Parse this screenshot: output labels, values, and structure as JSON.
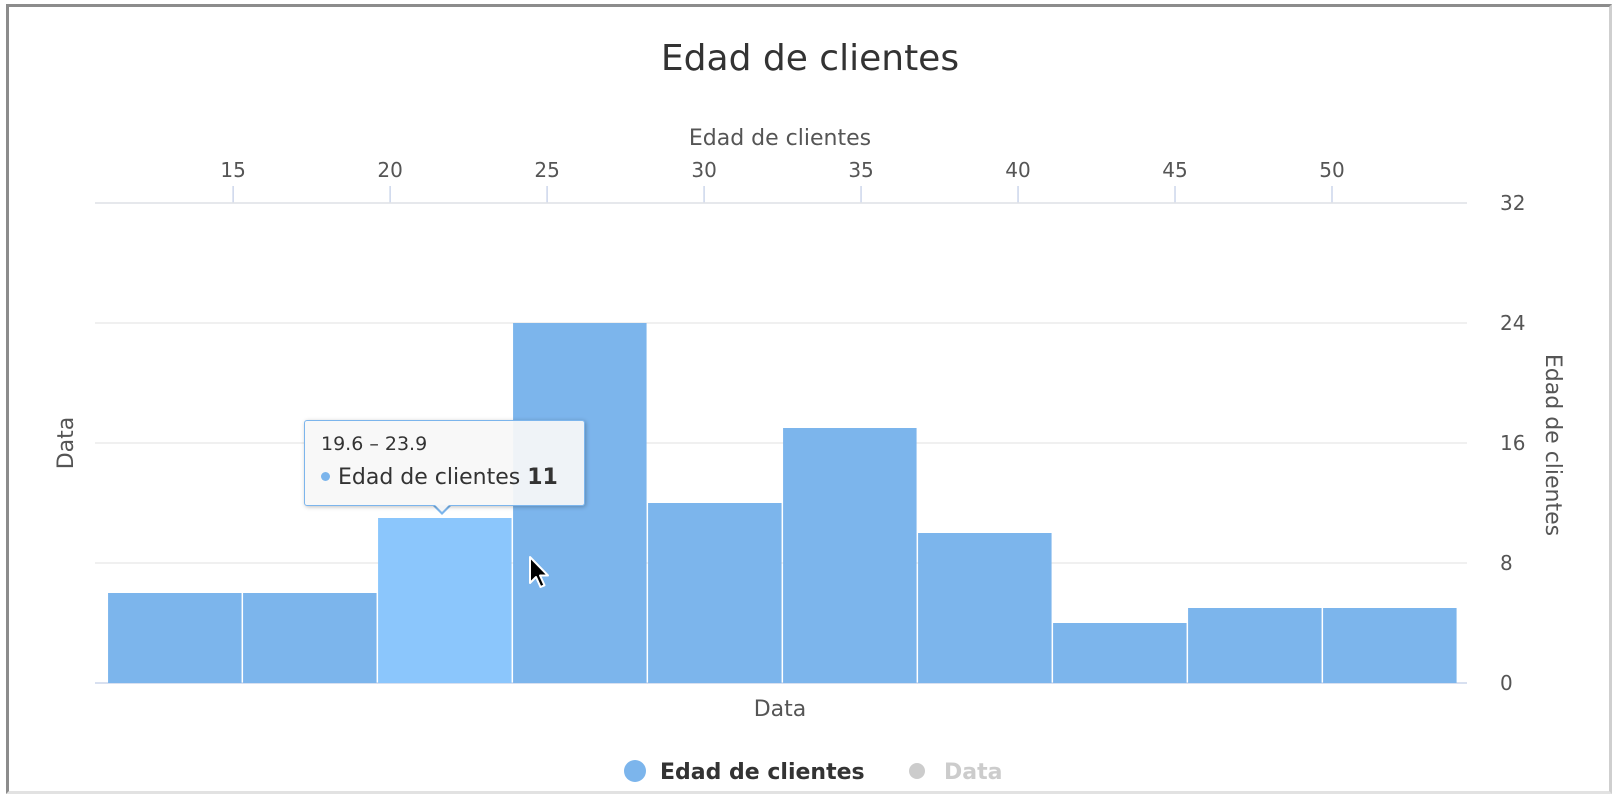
{
  "chart_data": {
    "type": "bar",
    "title": "Edad de clientes",
    "x_axis_top": {
      "title": "Edad de clientes",
      "ticks": [
        15,
        20,
        25,
        30,
        35,
        40,
        45,
        50
      ],
      "range": [
        10.6,
        54.3
      ]
    },
    "x_axis_bottom": {
      "title": "Data"
    },
    "y_axis_left": {
      "title": "Data"
    },
    "y_axis_right": {
      "title": "Edad de clientes",
      "ticks": [
        0,
        8,
        16,
        24,
        32
      ],
      "ylim": [
        0,
        32
      ]
    },
    "series": [
      {
        "name": "Edad de clientes",
        "color": "#7cb5ec",
        "bins": [
          {
            "from": 11.0,
            "to": 15.3,
            "value": 6
          },
          {
            "from": 15.3,
            "to": 19.6,
            "value": 6
          },
          {
            "from": 19.6,
            "to": 23.9,
            "value": 11,
            "highlighted": true
          },
          {
            "from": 23.9,
            "to": 28.2,
            "value": 24
          },
          {
            "from": 28.2,
            "to": 32.5,
            "value": 12
          },
          {
            "from": 32.5,
            "to": 36.8,
            "value": 17
          },
          {
            "from": 36.8,
            "to": 41.1,
            "value": 10
          },
          {
            "from": 41.1,
            "to": 45.4,
            "value": 4
          },
          {
            "from": 45.4,
            "to": 49.7,
            "value": 5
          },
          {
            "from": 49.7,
            "to": 54.0,
            "value": 5
          }
        ]
      },
      {
        "name": "Data",
        "color": "#cccccc",
        "hidden": true
      }
    ],
    "grid": true,
    "legend_position": "bottom-center",
    "highlight_color": "#8bc6fc",
    "tooltip": {
      "header": "19.6 – 23.9",
      "series_name": "Edad de clientes",
      "value": "11"
    }
  }
}
